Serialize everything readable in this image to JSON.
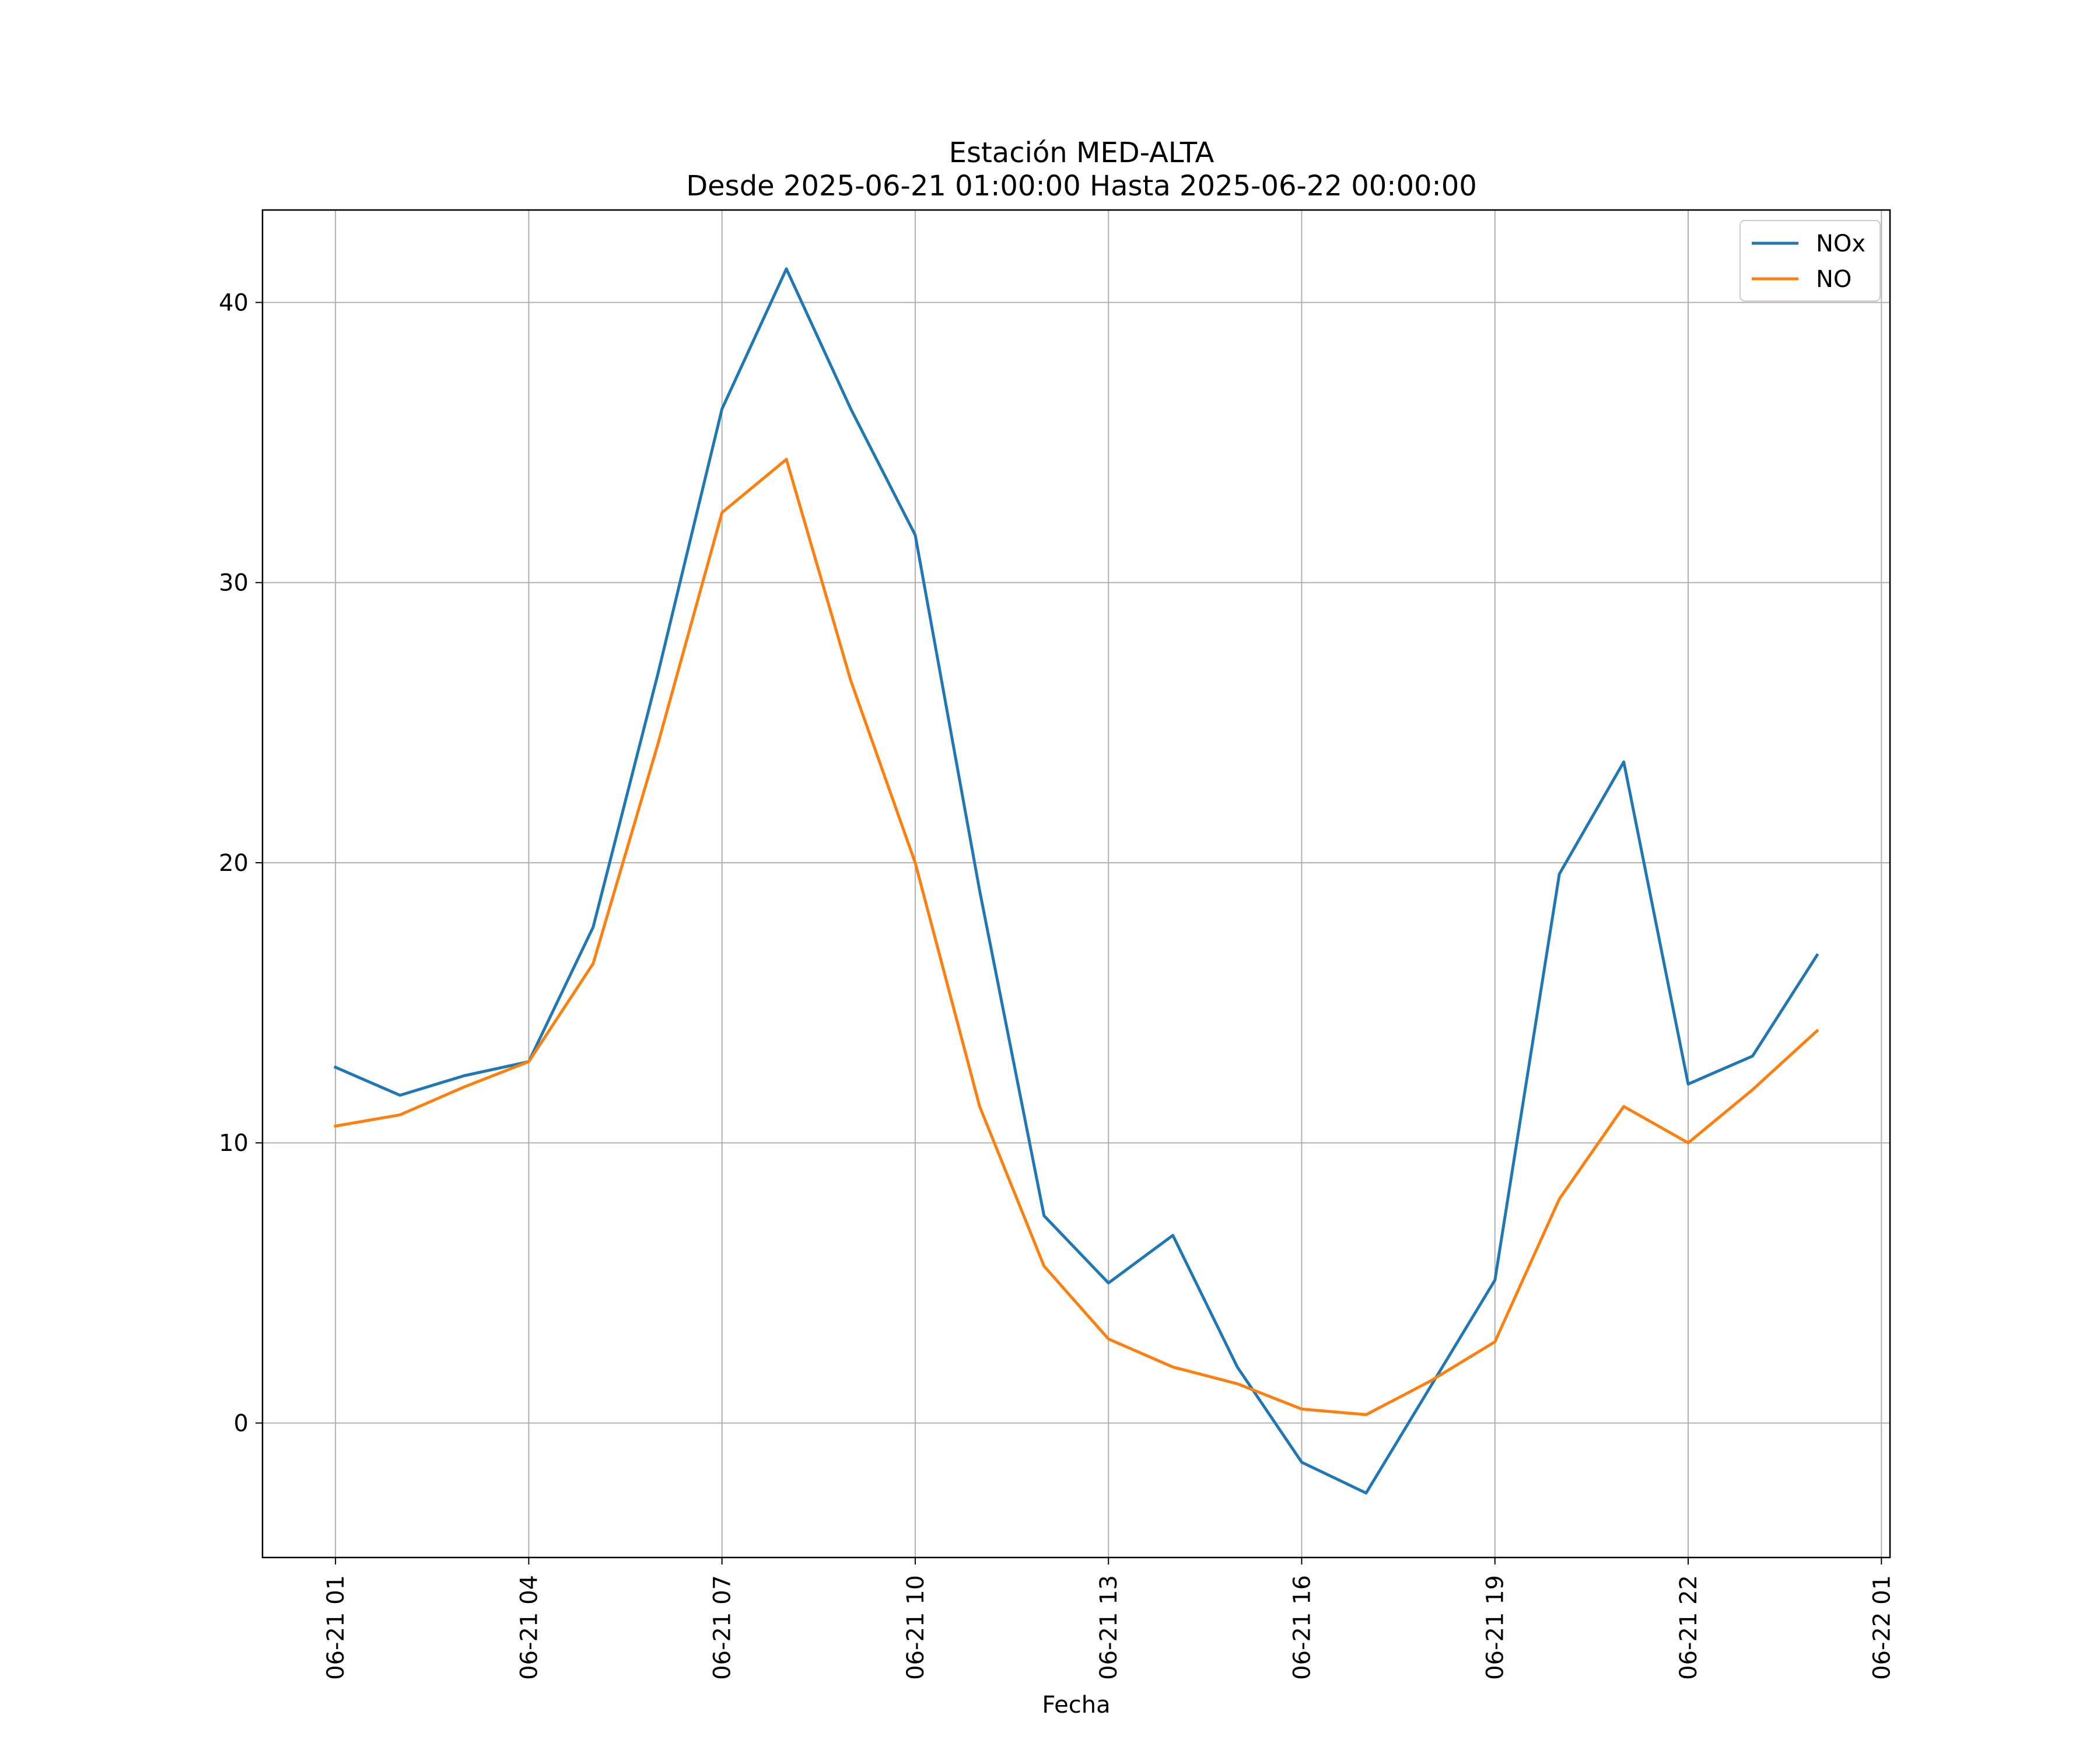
{
  "chart_data": {
    "type": "line",
    "title": "Estación MED-ALTA",
    "subtitle": "Desde 2025-06-21 01:00:00 Hasta 2025-06-22 00:00:00",
    "xlabel": "Fecha",
    "ylabel": "",
    "x": [
      "2025-06-21 01:00",
      "2025-06-21 02:00",
      "2025-06-21 03:00",
      "2025-06-21 04:00",
      "2025-06-21 05:00",
      "2025-06-21 06:00",
      "2025-06-21 07:00",
      "2025-06-21 08:00",
      "2025-06-21 09:00",
      "2025-06-21 10:00",
      "2025-06-21 11:00",
      "2025-06-21 12:00",
      "2025-06-21 13:00",
      "2025-06-21 14:00",
      "2025-06-21 15:00",
      "2025-06-21 16:00",
      "2025-06-21 17:00",
      "2025-06-21 18:00",
      "2025-06-21 19:00",
      "2025-06-21 20:00",
      "2025-06-21 21:00",
      "2025-06-21 22:00",
      "2025-06-21 23:00",
      "2025-06-22 00:00"
    ],
    "xlim": [
      "2025-06-20 23:52",
      "2025-06-22 01:08"
    ],
    "ylim": [
      -4.8,
      43.3
    ],
    "x_ticks": [
      "06-21 01",
      "06-21 04",
      "06-21 07",
      "06-21 10",
      "06-21 13",
      "06-21 16",
      "06-21 19",
      "06-21 22",
      "06-22 01"
    ],
    "y_ticks": [
      0,
      10,
      20,
      30,
      40
    ],
    "grid": true,
    "legend_position": "top-right",
    "series": [
      {
        "name": "NOx",
        "color": "#1f77b4",
        "values": [
          12.7,
          11.7,
          12.4,
          12.9,
          17.7,
          26.7,
          36.2,
          41.2,
          36.2,
          31.7,
          19.0,
          7.4,
          5.0,
          6.7,
          2.0,
          -1.4,
          -2.5,
          1.3,
          5.1,
          19.6,
          23.6,
          12.1,
          13.1,
          16.7
        ]
      },
      {
        "name": "NO",
        "color": "#ff7f0e",
        "values": [
          10.6,
          11.0,
          12.0,
          12.9,
          16.4,
          24.2,
          32.5,
          34.4,
          26.5,
          20.0,
          11.3,
          5.6,
          3.0,
          2.0,
          1.4,
          0.5,
          0.3,
          1.5,
          2.9,
          8.0,
          11.3,
          10.0,
          11.9,
          14.0
        ]
      }
    ]
  }
}
